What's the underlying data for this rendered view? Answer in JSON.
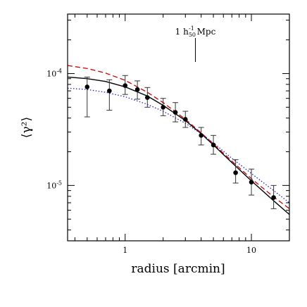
{
  "chart_data": {
    "type": "scatter",
    "title": "",
    "xlabel": "radius [arcmin]",
    "ylabel": "⟨γ²⟩",
    "x_scale": "log",
    "y_scale": "log",
    "xlim": [
      0.35,
      20
    ],
    "ylim": [
      3.2e-06,
      0.00034
    ],
    "x_ticks": [
      {
        "value": 1,
        "label": "1"
      },
      {
        "value": 10,
        "label": "10"
      }
    ],
    "y_ticks": [
      {
        "value": 1e-05,
        "base": "10",
        "exp": "-5"
      },
      {
        "value": 0.0001,
        "base": "10",
        "exp": "-4"
      }
    ],
    "grid": false,
    "annotation": {
      "prefix": "1 h",
      "sub": "50",
      "sup": "-1",
      "suffix": " Mpc",
      "x": 3.6
    },
    "points": [
      {
        "x": 0.5,
        "y": 7.6e-05,
        "ylo": 4.1e-05,
        "yhi": 9.3e-05
      },
      {
        "x": 0.75,
        "y": 7e-05,
        "ylo": 4.7e-05,
        "yhi": 8.8e-05
      },
      {
        "x": 1.0,
        "y": 7.8e-05,
        "ylo": 6.5e-05,
        "yhi": 9.6e-05
      },
      {
        "x": 1.25,
        "y": 7.2e-05,
        "ylo": 5.9e-05,
        "yhi": 8.6e-05
      },
      {
        "x": 1.5,
        "y": 6.1e-05,
        "ylo": 5e-05,
        "yhi": 7.5e-05
      },
      {
        "x": 2.0,
        "y": 5e-05,
        "ylo": 4.2e-05,
        "yhi": 6e-05
      },
      {
        "x": 2.5,
        "y": 4.5e-05,
        "ylo": 3.7e-05,
        "yhi": 5.5e-05
      },
      {
        "x": 3.0,
        "y": 3.9e-05,
        "ylo": 3.3e-05,
        "yhi": 4.6e-05
      },
      {
        "x": 4.0,
        "y": 2.8e-05,
        "ylo": 2.3e-05,
        "yhi": 3.3e-05
      },
      {
        "x": 5.0,
        "y": 2.3e-05,
        "ylo": 1.9e-05,
        "yhi": 2.8e-05
      },
      {
        "x": 7.5,
        "y": 1.3e-05,
        "ylo": 1.05e-05,
        "yhi": 1.7e-05
      },
      {
        "x": 10.0,
        "y": 1.07e-05,
        "ylo": 8.2e-06,
        "yhi": 1.4e-05
      },
      {
        "x": 15.0,
        "y": 7.8e-06,
        "ylo": 6.2e-06,
        "yhi": 1e-05
      }
    ],
    "series": [
      {
        "style": "solid",
        "color": "#000000",
        "x": [
          0.35,
          0.5,
          0.7,
          1.0,
          1.5,
          2.0,
          3.0,
          4.0,
          5.0,
          7.0,
          10.0,
          15.0,
          20.0
        ],
        "y": [
          9.3e-05,
          9e-05,
          8.5e-05,
          7.6e-05,
          6.3e-05,
          5.2e-05,
          3.8e-05,
          2.9e-05,
          2.3e-05,
          1.6e-05,
          1.1e-05,
          7.3e-06,
          5.5e-06
        ]
      },
      {
        "style": "dashed",
        "color": "#cc0000",
        "x": [
          0.35,
          0.5,
          0.7,
          1.0,
          1.5,
          2.0,
          3.0,
          4.0,
          5.0,
          7.0,
          10.0,
          15.0,
          20.0
        ],
        "y": [
          0.000118,
          0.000111,
          0.000101,
          8.7e-05,
          6.8e-05,
          5.5e-05,
          3.9e-05,
          2.95e-05,
          2.35e-05,
          1.65e-05,
          1.15e-05,
          7.9e-06,
          6.2e-06
        ]
      },
      {
        "style": "dotted",
        "color": "#2222cc",
        "x": [
          0.35,
          0.5,
          0.7,
          1.0,
          1.5,
          2.0,
          3.0,
          4.0,
          5.0,
          7.0,
          10.0,
          15.0,
          20.0
        ],
        "y": [
          7.4e-05,
          7.2e-05,
          6.8e-05,
          6.2e-05,
          5.3e-05,
          4.6e-05,
          3.6e-05,
          2.9e-05,
          2.4e-05,
          1.75e-05,
          1.28e-05,
          9e-06,
          7e-06
        ]
      }
    ]
  }
}
